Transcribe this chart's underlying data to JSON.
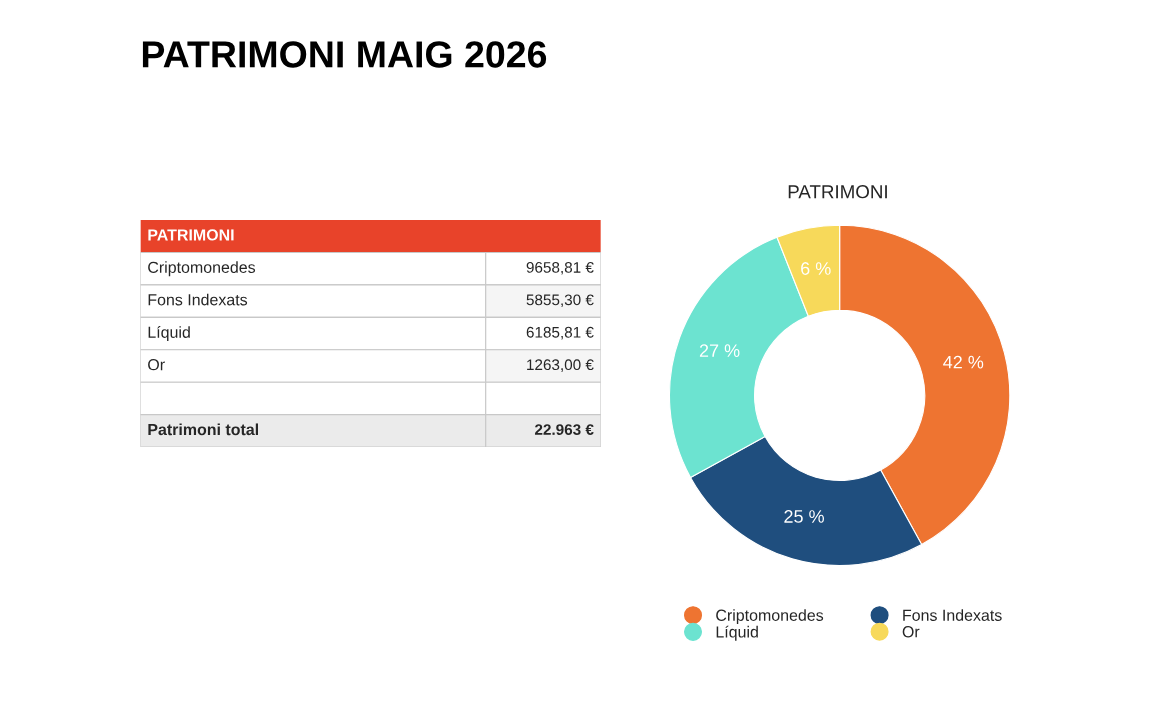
{
  "chart_data": [
    {
      "type": "other",
      "title": "PATRIMONI MAIG 2026",
      "subtitle": "PATRIMONI",
      "annotations": [
        "Criptomonedes",
        "9658,81 €",
        "Fons Indexats",
        "5855,30 €",
        "Líquid",
        "6185,81 €",
        "Or",
        "1263,00 €",
        "Patrimoni total",
        "22.963 €"
      ]
    },
    {
      "type": "donut",
      "title": "PATRIMONI",
      "categories": [
        "Criptomonedes",
        "Fons Indexats",
        "Líquid",
        "Or"
      ],
      "values": [
        42,
        25,
        27,
        6
      ],
      "colors": [
        "#ee7431",
        "#1f4e7e",
        "#6ce3d0",
        "#f7d95a"
      ],
      "value_labels": [
        "42 %",
        "25 %",
        "27 %",
        "6 %"
      ],
      "legend": "bottom"
    }
  ]
}
